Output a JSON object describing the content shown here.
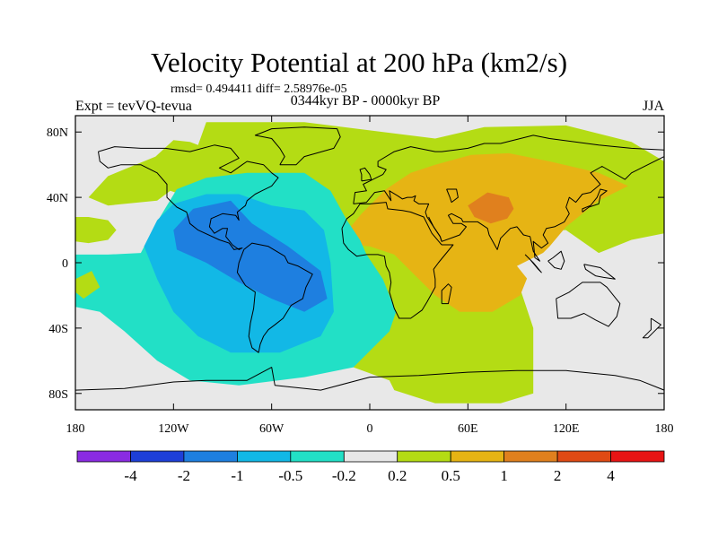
{
  "title": "Velocity Potential at 200 hPa (km2/s)",
  "stats_text": "rmsd= 0.494411 diff= 2.58976e-05",
  "left_label": "Expt = tevVQ-tevua",
  "center_label": "0344kyr BP - 0000kyr BP",
  "right_label": "JJA",
  "chart_data": {
    "type": "heatmap",
    "map_projection": "cylindrical equidistant",
    "xlim": [
      -180,
      180
    ],
    "ylim": [
      -90,
      90
    ],
    "x_ticks": [
      {
        "value": -180,
        "label": "180"
      },
      {
        "value": -120,
        "label": "120W"
      },
      {
        "value": -60,
        "label": "60W"
      },
      {
        "value": 0,
        "label": "0"
      },
      {
        "value": 60,
        "label": "60E"
      },
      {
        "value": 120,
        "label": "120E"
      },
      {
        "value": 180,
        "label": "180"
      }
    ],
    "y_ticks": [
      {
        "value": 80,
        "label": "80N"
      },
      {
        "value": 40,
        "label": "40N"
      },
      {
        "value": 0,
        "label": "0"
      },
      {
        "value": -40,
        "label": "40S"
      },
      {
        "value": -80,
        "label": "80S"
      }
    ],
    "colorbar": {
      "labels": [
        "-4",
        "-2",
        "-1",
        "-0.5",
        "-0.2",
        "0.2",
        "0.5",
        "1",
        "2",
        "4"
      ],
      "colors": [
        "#8a2be2",
        "#1e3fd8",
        "#1e7fe0",
        "#12b8e6",
        "#22e0c6",
        "#e8e8e8",
        "#b4dc14",
        "#e6b414",
        "#e0801e",
        "#e04a14",
        "#e81414"
      ]
    },
    "regions": [
      {
        "name": "western-positive-band",
        "level": "0.2 to 0.5",
        "color": "#b4dc14",
        "lonlat": [
          [
            -160,
            53
          ],
          [
            -131,
            65
          ],
          [
            -120,
            75
          ],
          [
            -110,
            74
          ],
          [
            -105,
            72
          ],
          [
            -100,
            86
          ],
          [
            -40,
            86
          ],
          [
            40,
            76
          ],
          [
            70,
            83
          ],
          [
            120,
            84
          ],
          [
            160,
            74
          ],
          [
            180,
            62
          ],
          [
            180,
            18
          ],
          [
            160,
            14
          ],
          [
            140,
            6
          ],
          [
            120,
            20
          ],
          [
            100,
            20
          ],
          [
            90,
            -10
          ],
          [
            100,
            -40
          ],
          [
            100,
            -80
          ],
          [
            80,
            -86
          ],
          [
            40,
            -86
          ],
          [
            15,
            -78
          ],
          [
            12,
            -72
          ],
          [
            -10,
            -64
          ],
          [
            -24,
            -42
          ],
          [
            -36,
            -26
          ],
          [
            -39,
            10
          ],
          [
            -60,
            22
          ],
          [
            -82,
            38
          ],
          [
            -110,
            40
          ],
          [
            -122,
            44
          ],
          [
            -130,
            38
          ],
          [
            -160,
            35
          ],
          [
            -172,
            40
          ]
        ]
      },
      {
        "name": "eastern-pacific-positive",
        "level": "0.2 to 0.5",
        "color": "#b4dc14",
        "lonlat": [
          [
            -180,
            13
          ],
          [
            -172,
            12
          ],
          [
            -160,
            14
          ],
          [
            -155,
            20
          ],
          [
            -160,
            26
          ],
          [
            -172,
            28
          ],
          [
            -180,
            28
          ]
        ]
      },
      {
        "name": "main-orange",
        "level": "0.5 to 1",
        "color": "#e6b414",
        "lonlat": [
          [
            -20,
            12
          ],
          [
            -5,
            30
          ],
          [
            10,
            45
          ],
          [
            25,
            55
          ],
          [
            40,
            60
          ],
          [
            62,
            66
          ],
          [
            85,
            67
          ],
          [
            110,
            62
          ],
          [
            140,
            55
          ],
          [
            158,
            47
          ],
          [
            140,
            38
          ],
          [
            120,
            22
          ],
          [
            110,
            10
          ],
          [
            100,
            0
          ],
          [
            92,
            -20
          ],
          [
            75,
            -30
          ],
          [
            55,
            -30
          ],
          [
            40,
            -20
          ],
          [
            28,
            -8
          ],
          [
            15,
            5
          ],
          [
            0,
            10
          ]
        ]
      },
      {
        "name": "tibet-core",
        "level": "1 to 2",
        "color": "#e0801e",
        "lonlat": [
          [
            60,
            35
          ],
          [
            72,
            43
          ],
          [
            85,
            40
          ],
          [
            88,
            33
          ],
          [
            84,
            27
          ],
          [
            74,
            24
          ],
          [
            64,
            28
          ]
        ]
      },
      {
        "name": "negative-cyan",
        "level": "-0.2 to -0.5",
        "color": "#22e0c6",
        "lonlat": [
          [
            -180,
            5
          ],
          [
            -160,
            5
          ],
          [
            -140,
            6
          ],
          [
            -130,
            25
          ],
          [
            -118,
            45
          ],
          [
            -100,
            52
          ],
          [
            -75,
            55
          ],
          [
            -40,
            55
          ],
          [
            -24,
            44
          ],
          [
            -14,
            26
          ],
          [
            -6,
            14
          ],
          [
            -2,
            5
          ],
          [
            8,
            -10
          ],
          [
            16,
            -30
          ],
          [
            12,
            -42
          ],
          [
            -10,
            -64
          ],
          [
            -40,
            -70
          ],
          [
            -80,
            -75
          ],
          [
            -110,
            -72
          ],
          [
            -130,
            -60
          ],
          [
            -150,
            -42
          ],
          [
            -165,
            -30
          ],
          [
            -180,
            -27
          ]
        ]
      },
      {
        "name": "negative-blue",
        "level": "-0.5 to -1",
        "color": "#12b8e6",
        "lonlat": [
          [
            -130,
            26
          ],
          [
            -120,
            36
          ],
          [
            -100,
            42
          ],
          [
            -80,
            42
          ],
          [
            -60,
            35
          ],
          [
            -40,
            32
          ],
          [
            -28,
            20
          ],
          [
            -24,
            0
          ],
          [
            -22,
            -30
          ],
          [
            -30,
            -45
          ],
          [
            -55,
            -55
          ],
          [
            -85,
            -55
          ],
          [
            -105,
            -45
          ],
          [
            -120,
            -30
          ],
          [
            -130,
            -10
          ],
          [
            -138,
            10
          ]
        ]
      },
      {
        "name": "negative-core",
        "level": "-1 to -2",
        "color": "#1e7fe0",
        "lonlat": [
          [
            -120,
            20
          ],
          [
            -108,
            33
          ],
          [
            -85,
            38
          ],
          [
            -72,
            24
          ],
          [
            -50,
            10
          ],
          [
            -30,
            -5
          ],
          [
            -26,
            -22
          ],
          [
            -40,
            -30
          ],
          [
            -60,
            -22
          ],
          [
            -80,
            -12
          ],
          [
            -100,
            0
          ],
          [
            -118,
            8
          ]
        ]
      },
      {
        "name": "maritime-continent-neutral",
        "level": "-0.2 to 0.2",
        "color": "#e8e8e8",
        "lonlat": [
          [
            90,
            -2
          ],
          [
            98,
            -12
          ],
          [
            118,
            -14
          ],
          [
            130,
            -6
          ],
          [
            127,
            6
          ],
          [
            110,
            8
          ]
        ]
      },
      {
        "name": "dateline-eastern-strip",
        "level": "0.2 to 0.5",
        "color": "#b4dc14",
        "lonlat": [
          [
            -180,
            -10
          ],
          [
            -170,
            -5
          ],
          [
            -165,
            -15
          ],
          [
            -175,
            -22
          ],
          [
            -180,
            -18
          ]
        ]
      }
    ],
    "coastlines": "world continents (land outlines) in black"
  }
}
